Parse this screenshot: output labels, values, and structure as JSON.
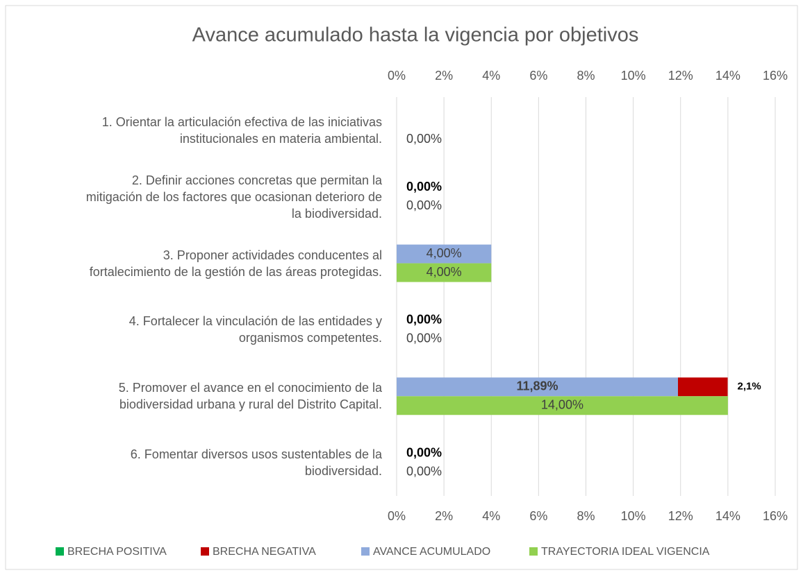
{
  "chart_data": {
    "type": "bar",
    "orientation": "horizontal",
    "title": "Avance acumulado hasta la vigencia por objetivos",
    "categories": [
      "1. Orientar la articulación efectiva de las iniciativas\ninstitucionales en materia ambiental.",
      "2. Definir acciones concretas que permitan la\nmitigación de los factores que ocasionan deterioro de\nla biodiversidad.",
      "3. Proponer actividades conducentes al\nfortalecimiento de la gestión de las áreas protegidas.",
      "4. Fortalecer la vinculación de las entidades y\norganismos competentes.",
      "5. Promover el avance en el conocimiento de la\nbiodiversidad urbana y rural del Distrito Capital.",
      "6. Fomentar diversos usos sustentables de la\nbiodiversidad."
    ],
    "series": [
      {
        "name": "BRECHA POSITIVA",
        "color": "#00b050",
        "values": [
          null,
          null,
          null,
          null,
          null,
          null
        ]
      },
      {
        "name": "BRECHA NEGATIVA",
        "color": "#c00000",
        "values": [
          null,
          0,
          null,
          0,
          2.1,
          0
        ],
        "value_labels": [
          null,
          "0,00%",
          null,
          "0,00%",
          "2,1%",
          "0,00%"
        ]
      },
      {
        "name": "AVANCE ACUMULADO",
        "color": "#8faadc",
        "values": [
          null,
          0,
          4,
          0,
          11.89,
          0
        ],
        "value_labels": [
          null,
          null,
          "4,00%",
          null,
          "11,89%",
          null
        ]
      },
      {
        "name": "TRAYECTORIA IDEAL VIGENCIA",
        "color": "#92d050",
        "values": [
          0,
          0,
          4,
          0,
          14,
          0
        ],
        "value_labels": [
          "0,00%",
          "0,00%",
          "4,00%",
          "0,00%",
          "14,00%",
          "0,00%"
        ]
      }
    ],
    "xlim": [
      0,
      16
    ],
    "xticks": [
      {
        "value": 0,
        "label": "0%"
      },
      {
        "value": 2,
        "label": "2%"
      },
      {
        "value": 4,
        "label": "4%"
      },
      {
        "value": 6,
        "label": "6%"
      },
      {
        "value": 8,
        "label": "8%"
      },
      {
        "value": 10,
        "label": "10%"
      },
      {
        "value": 12,
        "label": "12%"
      },
      {
        "value": 14,
        "label": "14%"
      },
      {
        "value": 16,
        "label": "16%"
      }
    ],
    "grid": true,
    "legend": "bottom"
  }
}
